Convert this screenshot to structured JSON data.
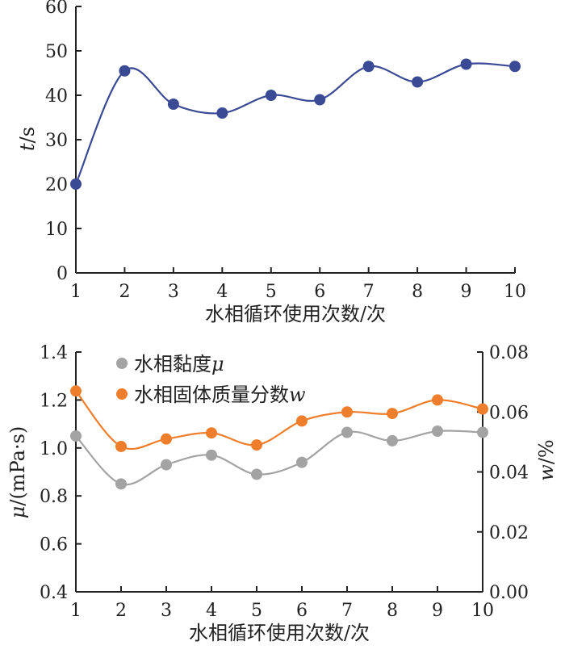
{
  "chart_data": [
    {
      "type": "line",
      "x": [
        1,
        2,
        3,
        4,
        5,
        6,
        7,
        8,
        9,
        10
      ],
      "series": [
        {
          "values": [
            20,
            45.5,
            38,
            36,
            40,
            39,
            46.5,
            43,
            47,
            46.5
          ],
          "color": "#3a4a94"
        }
      ],
      "xlabel": "水相循环使用次数/次",
      "ylabel_italic": "t",
      "ylabel_rest": "/s",
      "xlim": [
        1,
        10
      ],
      "ylim": [
        0,
        60
      ],
      "xticks": [
        "1",
        "2",
        "3",
        "4",
        "5",
        "6",
        "7",
        "8",
        "9",
        "10"
      ],
      "yticks": [
        "0",
        "10",
        "20",
        "30",
        "40",
        "50",
        "60"
      ],
      "grid": false
    },
    {
      "type": "line",
      "x": [
        1,
        2,
        3,
        4,
        5,
        6,
        7,
        8,
        9,
        10
      ],
      "series": [
        {
          "name": "水相黏度",
          "name_symbol": "μ",
          "axis": "left",
          "values": [
            1.05,
            0.85,
            0.93,
            0.97,
            0.89,
            0.94,
            1.065,
            1.03,
            1.07,
            1.065
          ],
          "color": "#a3a3a3"
        },
        {
          "name": "水相固体质量分数",
          "name_symbol": "w",
          "axis": "right",
          "values": [
            0.067,
            0.0485,
            0.051,
            0.053,
            0.049,
            0.057,
            0.06,
            0.0595,
            0.064,
            0.061
          ],
          "color": "#ef7e2c"
        }
      ],
      "xlabel": "水相循环使用次数/次",
      "ylabel_left_symbol": "μ",
      "ylabel_left_rest": "/(mPa·s)",
      "ylabel_right_symbol": "w",
      "ylabel_right_rest": "/%",
      "xlim": [
        1,
        10
      ],
      "ylim_left": [
        0.4,
        1.4
      ],
      "ylim_right": [
        0,
        0.08
      ],
      "xticks": [
        "1",
        "2",
        "3",
        "4",
        "5",
        "6",
        "7",
        "8",
        "9",
        "10"
      ],
      "yticks_left": [
        "0.4",
        "0.6",
        "0.8",
        "1.0",
        "1.2",
        "1.4"
      ],
      "yticks_right": [
        "0.00",
        "0.02",
        "0.04",
        "0.06",
        "0.08"
      ],
      "legend_position": "top-left",
      "grid": false
    }
  ]
}
